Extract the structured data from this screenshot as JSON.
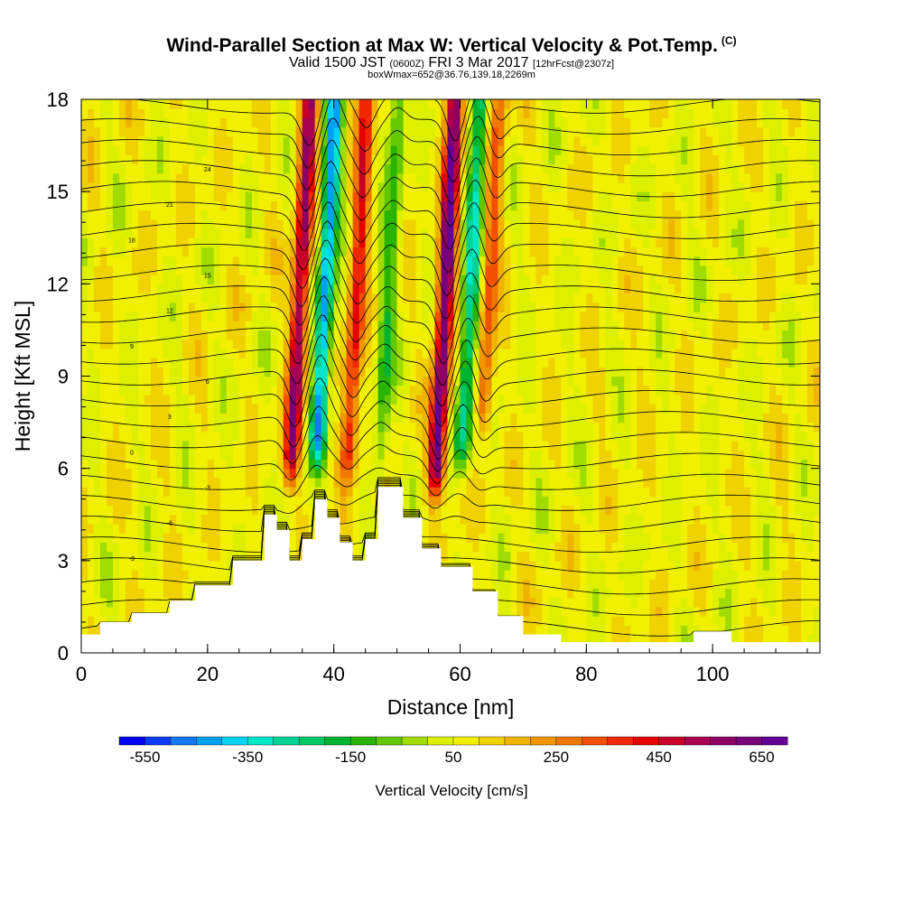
{
  "title": {
    "main": "Wind-Parallel Section at Max W: Vertical Velocity & Pot.Temp.",
    "main_suffix": "(C)",
    "valid_prefix": "Valid 1500 JST",
    "valid_utc": "(0600Z)",
    "valid_date": "FRI 3 Mar 2017",
    "forecast": "[12hrFcst@2307z]",
    "box_info": "boxWmax=652@36.76,139.18,2269m"
  },
  "chart_data": {
    "type": "heatmap",
    "xlabel": "Distance [nm]",
    "ylabel": "Height [Kft MSL]",
    "xlim": [
      0,
      117
    ],
    "ylim": [
      0,
      18
    ],
    "xticks": [
      0,
      20,
      40,
      60,
      80,
      100
    ],
    "yticks": [
      0,
      3,
      6,
      9,
      12,
      15,
      18
    ],
    "grid": false,
    "colorbar": {
      "label": "Vertical Velocity [cm/s]",
      "ticks": [
        "-550",
        "-350",
        "-150",
        "50",
        "250",
        "450",
        "650"
      ],
      "tick_values": [
        -550,
        -350,
        -150,
        50,
        250,
        450,
        650
      ],
      "range": [
        -600,
        700
      ],
      "bin_width": 50,
      "colors": [
        "#0000f0",
        "#0a3cf5",
        "#1478f0",
        "#00a0f0",
        "#00d2f0",
        "#00e6c8",
        "#00d296",
        "#00c864",
        "#00b432",
        "#28b400",
        "#64c800",
        "#a0dc00",
        "#dcf000",
        "#f0f000",
        "#f0d200",
        "#f0b400",
        "#f09600",
        "#f07800",
        "#f05000",
        "#f02800",
        "#e60000",
        "#c80028",
        "#aa0050",
        "#8c0064",
        "#780078",
        "#640096"
      ]
    },
    "terrain_profile": {
      "x": [
        0,
        3,
        3,
        8,
        8,
        14,
        14,
        18,
        18,
        24,
        24,
        29,
        29,
        31,
        31,
        33,
        33,
        35,
        35,
        37,
        37,
        39,
        39,
        41,
        41,
        43,
        43,
        45,
        45,
        47,
        47,
        51,
        51,
        54,
        54,
        57,
        57,
        62,
        62,
        66,
        66,
        70,
        70,
        76,
        76,
        80,
        80,
        90,
        90,
        97,
        97,
        103,
        103,
        110,
        110,
        117
      ],
      "y": [
        0.6,
        0.6,
        1.0,
        1.0,
        1.3,
        1.3,
        1.7,
        1.7,
        2.2,
        2.2,
        3.0,
        3.0,
        4.5,
        4.5,
        4.0,
        4.0,
        3.0,
        3.0,
        3.7,
        3.7,
        5.0,
        5.0,
        4.4,
        4.4,
        3.6,
        3.6,
        3.0,
        3.0,
        3.7,
        3.7,
        5.4,
        5.4,
        4.4,
        4.4,
        3.4,
        3.4,
        2.8,
        2.8,
        2.0,
        2.0,
        1.2,
        1.2,
        0.6,
        0.6,
        0.35,
        0.35,
        0.35,
        0.35,
        0.35,
        0.35,
        0.7,
        0.7,
        0.35,
        0.35,
        0.35,
        0.35
      ]
    },
    "vertical_velocity_features": [
      {
        "x": 34,
        "z_min": 6.5,
        "z_max": 18,
        "w": 500
      },
      {
        "x": 38,
        "z_min": 7,
        "z_max": 18,
        "w": -500
      },
      {
        "x": 43,
        "z_min": 6.5,
        "z_max": 18,
        "w": 350
      },
      {
        "x": 48,
        "z_min": 6.5,
        "z_max": 18,
        "w": -200
      },
      {
        "x": 57,
        "z_min": 6,
        "z_max": 18,
        "w": 600
      },
      {
        "x": 61,
        "z_min": 7,
        "z_max": 18,
        "w": -350
      },
      {
        "x": 64,
        "z_min": 8,
        "z_max": 18,
        "w": 250
      }
    ],
    "isentropes": {
      "label_values": [
        -9,
        -6,
        -3,
        0,
        3,
        6,
        9,
        12,
        15,
        18,
        21,
        24
      ],
      "levels_count": 26
    }
  }
}
